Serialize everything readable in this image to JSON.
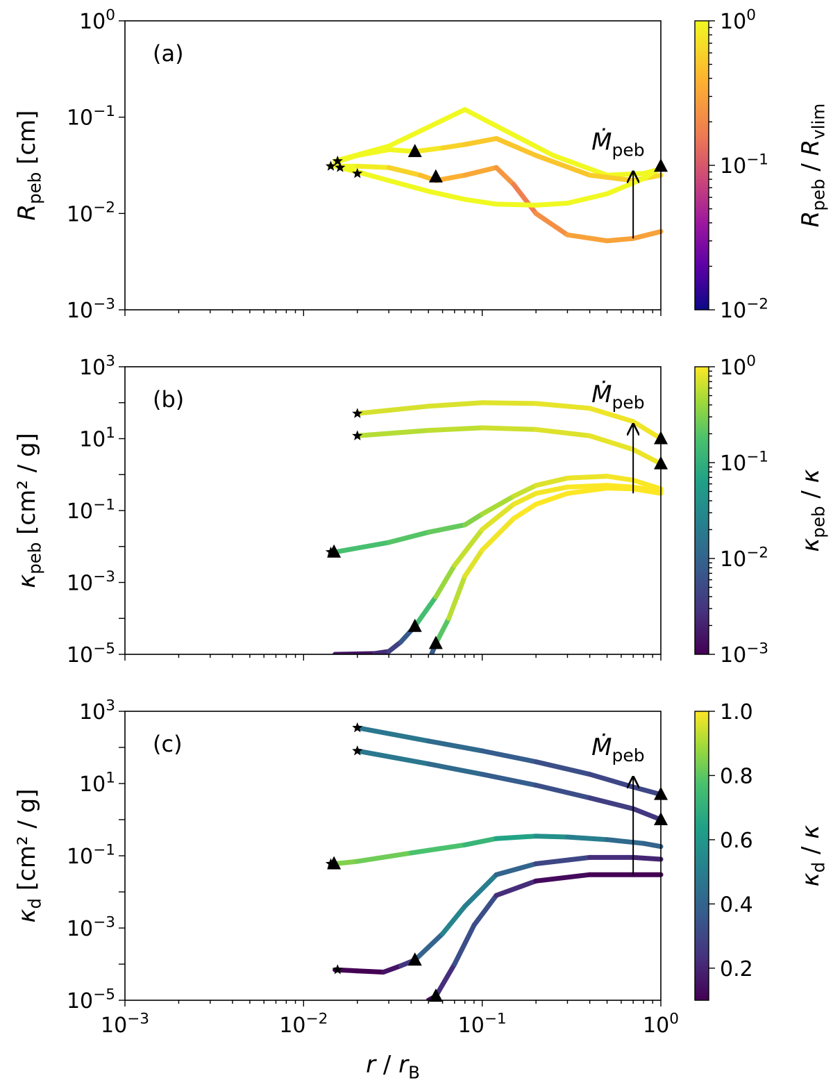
{
  "chart_data": [
    {
      "type": "line",
      "panel_label": "(a)",
      "ylabel": "R_peb [cm]",
      "ylim": [
        0.001,
        1
      ],
      "xlim": [
        0.001,
        1
      ],
      "x_ticklabels": [],
      "y_ticks": [
        {
          "value": 1,
          "label": "10^0"
        },
        {
          "value": 0.1,
          "label": "10^−1"
        },
        {
          "value": 0.01,
          "label": "10^−2"
        },
        {
          "value": 0.001,
          "label": "10^−3"
        }
      ],
      "colorbar": {
        "colormap": "plasma",
        "label": "R_peb / R_vlim",
        "scale": "log",
        "range": [
          0.01,
          1
        ],
        "ticks": [
          {
            "value": 1,
            "label": "10^0"
          },
          {
            "value": 0.1,
            "label": "10^−1"
          },
          {
            "value": 0.01,
            "label": "10^−2"
          }
        ]
      },
      "annotation": {
        "text": "Ṁ_peb",
        "arrow_x": 0.7,
        "arrow_from_y": 0.0055,
        "arrow_to_y": 0.027
      },
      "series": [
        {
          "name": "curve-1",
          "x": [
            0.015,
            0.03,
            0.08,
            0.13,
            0.25,
            0.5,
            0.8,
            1.0
          ],
          "y": [
            0.035,
            0.05,
            0.12,
            0.075,
            0.04,
            0.025,
            0.026,
            0.029
          ],
          "c": [
            1,
            1,
            1,
            1,
            1,
            1,
            1,
            1
          ]
        },
        {
          "name": "curve-2",
          "x": [
            0.015,
            0.02,
            0.03,
            0.042,
            0.06,
            0.08,
            0.12,
            0.2,
            0.4,
            0.7,
            1.0
          ],
          "y": [
            0.034,
            0.04,
            0.046,
            0.044,
            0.048,
            0.052,
            0.06,
            0.04,
            0.025,
            0.022,
            0.025
          ],
          "c": [
            1,
            1,
            1,
            0.95,
            0.65,
            0.55,
            0.5,
            0.5,
            0.5,
            0.6,
            0.7
          ]
        },
        {
          "name": "curve-3",
          "x": [
            0.014,
            0.02,
            0.03,
            0.045,
            0.055,
            0.08,
            0.12,
            0.15,
            0.2,
            0.3,
            0.5,
            0.7,
            1.0
          ],
          "y": [
            0.031,
            0.031,
            0.03,
            0.025,
            0.022,
            0.025,
            0.03,
            0.02,
            0.01,
            0.006,
            0.0052,
            0.0055,
            0.0065
          ],
          "c": [
            1,
            1,
            0.7,
            0.5,
            0.4,
            0.35,
            0.3,
            0.2,
            0.15,
            0.3,
            0.3,
            0.3,
            0.3
          ]
        },
        {
          "name": "curve-4",
          "x": [
            0.016,
            0.02,
            0.03,
            0.05,
            0.08,
            0.12,
            0.2,
            0.3,
            0.5,
            0.8,
            1.0
          ],
          "y": [
            0.03,
            0.027,
            0.022,
            0.017,
            0.014,
            0.0125,
            0.0122,
            0.0128,
            0.016,
            0.023,
            0.03
          ],
          "c": [
            1,
            1,
            1,
            1,
            1,
            1,
            1,
            1,
            1,
            1,
            1
          ]
        }
      ],
      "stars": [
        {
          "x": 0.0142,
          "y": 0.031
        },
        {
          "x": 0.0155,
          "y": 0.035
        },
        {
          "x": 0.016,
          "y": 0.03
        },
        {
          "x": 0.02,
          "y": 0.026
        }
      ],
      "triangles": [
        {
          "x": 0.042,
          "y": 0.044
        },
        {
          "x": 0.055,
          "y": 0.024
        },
        {
          "x": 1.0,
          "y": 0.031
        }
      ]
    },
    {
      "type": "line",
      "panel_label": "(b)",
      "ylabel": "κ_peb [cm² / g]",
      "ylim": [
        1e-05,
        1000
      ],
      "xlim": [
        0.001,
        1
      ],
      "x_ticklabels": [],
      "y_ticks": [
        {
          "value": 1000,
          "label": "10^3"
        },
        {
          "value": 10,
          "label": "10^1"
        },
        {
          "value": 0.1,
          "label": "10^−1"
        },
        {
          "value": 0.001,
          "label": "10^−3"
        },
        {
          "value": 1e-05,
          "label": "10^−5"
        }
      ],
      "colorbar": {
        "colormap": "viridis",
        "label": "κ_peb / κ",
        "scale": "log",
        "range": [
          0.001,
          1
        ],
        "ticks": [
          {
            "value": 1,
            "label": "10^0"
          },
          {
            "value": 0.1,
            "label": "10^−1"
          },
          {
            "value": 0.01,
            "label": "10^−2"
          },
          {
            "value": 0.001,
            "label": "10^−3"
          }
        ]
      },
      "annotation": {
        "text": "Ṁ_peb",
        "arrow_x": 0.7,
        "arrow_from_y": 0.3,
        "arrow_to_y": 25
      },
      "series": [
        {
          "name": "curve-1",
          "x": [
            0.02,
            0.05,
            0.1,
            0.2,
            0.4,
            0.7,
            1.0
          ],
          "y": [
            50,
            80,
            100,
            95,
            70,
            30,
            10
          ],
          "c": [
            0.7,
            0.7,
            0.75,
            0.8,
            0.85,
            0.9,
            0.9
          ]
        },
        {
          "name": "curve-2",
          "x": [
            0.02,
            0.05,
            0.1,
            0.2,
            0.4,
            0.7,
            1.0
          ],
          "y": [
            12,
            17,
            20,
            18,
            12,
            5,
            2
          ],
          "c": [
            0.5,
            0.55,
            0.6,
            0.7,
            0.8,
            0.85,
            0.85
          ]
        },
        {
          "name": "curve-3",
          "x": [
            0.015,
            0.03,
            0.05,
            0.08,
            0.1,
            0.15,
            0.2,
            0.3,
            0.5,
            0.7,
            1.0
          ],
          "y": [
            0.007,
            0.013,
            0.025,
            0.04,
            0.08,
            0.25,
            0.5,
            0.8,
            0.9,
            0.7,
            0.4
          ],
          "c": [
            0.15,
            0.18,
            0.22,
            0.25,
            0.4,
            0.55,
            0.7,
            0.8,
            0.9,
            0.95,
            1
          ]
        },
        {
          "name": "curve-4",
          "x": [
            0.015,
            0.025,
            0.03,
            0.035,
            0.042,
            0.055,
            0.07,
            0.1,
            0.15,
            0.2,
            0.3,
            0.5,
            0.7,
            1.0
          ],
          "y": [
            1e-05,
            1.05e-05,
            1.2e-05,
            2.2e-05,
            6e-05,
            0.0004,
            0.003,
            0.03,
            0.15,
            0.3,
            0.45,
            0.5,
            0.45,
            0.35
          ],
          "c": [
            0.001,
            0.002,
            0.003,
            0.005,
            0.01,
            0.3,
            0.5,
            0.7,
            0.85,
            0.9,
            0.95,
            1,
            1,
            1
          ]
        },
        {
          "name": "curve-5",
          "x": [
            0.052,
            0.055,
            0.065,
            0.08,
            0.1,
            0.15,
            0.2,
            0.3,
            0.5,
            0.7,
            1.0
          ],
          "y": [
            1e-05,
            2e-05,
            0.0001,
            0.0015,
            0.008,
            0.06,
            0.15,
            0.3,
            0.42,
            0.4,
            0.3
          ],
          "c": [
            0.005,
            0.01,
            0.4,
            0.7,
            0.85,
            0.95,
            1,
            1,
            1,
            1,
            1
          ]
        }
      ],
      "stars": [
        {
          "x": 0.02,
          "y": 50
        },
        {
          "x": 0.02,
          "y": 12
        },
        {
          "x": 0.0142,
          "y": 0.007
        }
      ],
      "triangles": [
        {
          "x": 1.0,
          "y": 10
        },
        {
          "x": 1.0,
          "y": 2
        },
        {
          "x": 0.0148,
          "y": 0.007
        },
        {
          "x": 0.042,
          "y": 6e-05
        },
        {
          "x": 0.055,
          "y": 2e-05
        }
      ]
    },
    {
      "type": "line",
      "panel_label": "(c)",
      "ylabel": "κ_d [cm² / g]",
      "xlabel": "r / r_B",
      "ylim": [
        1e-05,
        1000
      ],
      "xlim": [
        0.001,
        1
      ],
      "x_ticklabels": [
        {
          "value": 0.001,
          "label": "10^−3"
        },
        {
          "value": 0.01,
          "label": "10^−2"
        },
        {
          "value": 0.1,
          "label": "10^−1"
        },
        {
          "value": 1,
          "label": "10^0"
        }
      ],
      "y_ticks": [
        {
          "value": 1000,
          "label": "10^3"
        },
        {
          "value": 10,
          "label": "10^1"
        },
        {
          "value": 0.1,
          "label": "10^−1"
        },
        {
          "value": 0.001,
          "label": "10^−3"
        },
        {
          "value": 1e-05,
          "label": "10^−5"
        }
      ],
      "colorbar": {
        "colormap": "viridis",
        "label": "κ_d / κ",
        "scale": "linear",
        "range": [
          0.1,
          1.0
        ],
        "ticks": [
          {
            "value": 1.0,
            "label": "1.0"
          },
          {
            "value": 0.8,
            "label": "0.8"
          },
          {
            "value": 0.6,
            "label": "0.6"
          },
          {
            "value": 0.4,
            "label": "0.4"
          },
          {
            "value": 0.2,
            "label": "0.2"
          }
        ]
      },
      "annotation": {
        "text": "Ṁ_peb",
        "arrow_x": 0.7,
        "arrow_from_y": 0.03,
        "arrow_to_y": 15
      },
      "series": [
        {
          "name": "curve-1",
          "x": [
            0.02,
            0.05,
            0.1,
            0.2,
            0.4,
            0.7,
            1.0
          ],
          "y": [
            350,
            150,
            80,
            40,
            18,
            8,
            5
          ],
          "c": [
            0.5,
            0.45,
            0.4,
            0.35,
            0.3,
            0.3,
            0.3
          ]
        },
        {
          "name": "curve-2",
          "x": [
            0.02,
            0.05,
            0.1,
            0.2,
            0.4,
            0.7,
            1.0
          ],
          "y": [
            80,
            35,
            18,
            9,
            4,
            2,
            1
          ],
          "c": [
            0.5,
            0.45,
            0.4,
            0.35,
            0.3,
            0.25,
            0.25
          ]
        },
        {
          "name": "curve-3",
          "x": [
            0.015,
            0.02,
            0.04,
            0.08,
            0.12,
            0.2,
            0.3,
            0.5,
            0.8,
            1.0
          ],
          "y": [
            0.06,
            0.07,
            0.12,
            0.2,
            0.3,
            0.35,
            0.33,
            0.28,
            0.22,
            0.18
          ],
          "c": [
            0.85,
            0.85,
            0.8,
            0.75,
            0.7,
            0.6,
            0.55,
            0.45,
            0.4,
            0.4
          ]
        },
        {
          "name": "curve-4",
          "x": [
            0.015,
            0.02,
            0.028,
            0.035,
            0.042,
            0.06,
            0.08,
            0.12,
            0.2,
            0.4,
            0.7,
            1.0
          ],
          "y": [
            7e-05,
            6.5e-05,
            6e-05,
            9e-05,
            0.00013,
            0.0007,
            0.004,
            0.03,
            0.06,
            0.09,
            0.09,
            0.08
          ],
          "c": [
            0.1,
            0.1,
            0.1,
            0.2,
            0.3,
            0.5,
            0.55,
            0.45,
            0.35,
            0.25,
            0.2,
            0.2
          ]
        },
        {
          "name": "curve-5",
          "x": [
            0.05,
            0.055,
            0.07,
            0.09,
            0.12,
            0.2,
            0.4,
            0.7,
            1.0
          ],
          "y": [
            1e-05,
            1.3e-05,
            0.0001,
            0.0012,
            0.008,
            0.02,
            0.03,
            0.03,
            0.03
          ],
          "c": [
            0.1,
            0.15,
            0.3,
            0.35,
            0.3,
            0.15,
            0.1,
            0.1,
            0.1
          ]
        }
      ],
      "stars": [
        {
          "x": 0.02,
          "y": 350
        },
        {
          "x": 0.02,
          "y": 80
        },
        {
          "x": 0.0142,
          "y": 0.06
        },
        {
          "x": 0.0155,
          "y": 7e-05
        }
      ],
      "triangles": [
        {
          "x": 1.0,
          "y": 5
        },
        {
          "x": 1.0,
          "y": 1
        },
        {
          "x": 0.0148,
          "y": 0.06
        },
        {
          "x": 0.042,
          "y": 0.00013
        },
        {
          "x": 0.055,
          "y": 1.3e-05
        }
      ]
    }
  ]
}
